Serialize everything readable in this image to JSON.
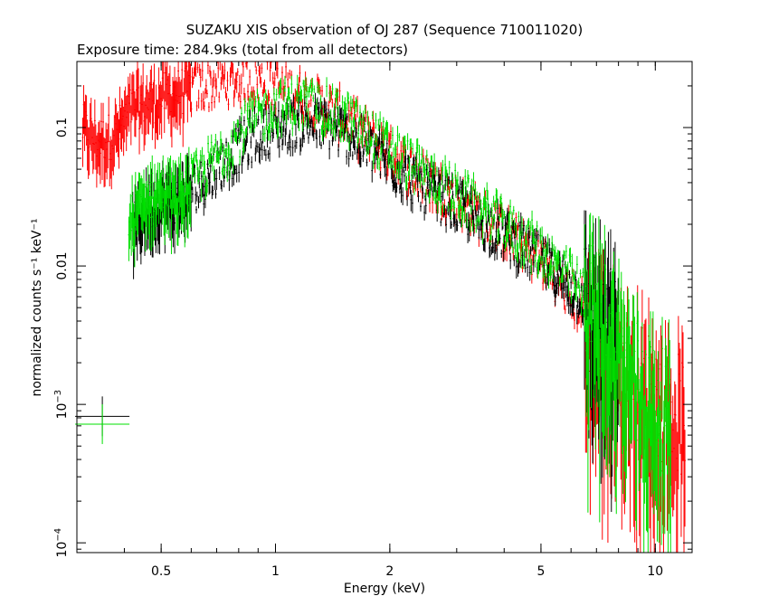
{
  "chart_data": {
    "type": "scatter",
    "title": "SUZAKU XIS observation of OJ 287 (Sequence 710011020)",
    "subtitle": "Exposure time: 284.9ks (total from all detectors)",
    "xlabel": "Energy (keV)",
    "ylabel": "normalized counts s⁻¹ keV⁻¹",
    "xscale": "log",
    "yscale": "log",
    "xlim": [
      0.3,
      12.5
    ],
    "ylim": [
      8.5e-05,
      0.3
    ],
    "grid": false,
    "x_ticks": [
      {
        "value": 0.5,
        "label": "0.5"
      },
      {
        "value": 1,
        "label": "1"
      },
      {
        "value": 2,
        "label": "2"
      },
      {
        "value": 5,
        "label": "5"
      },
      {
        "value": 10,
        "label": "10"
      }
    ],
    "y_ticks": [
      {
        "value": 0.0001,
        "base": "10",
        "exp": "−4"
      },
      {
        "value": 0.001,
        "base": "10",
        "exp": "−3"
      },
      {
        "value": 0.01,
        "label": "0.01"
      },
      {
        "value": 0.1,
        "label": "0.1"
      }
    ],
    "series": [
      {
        "color": "#ff0000",
        "x": [
          0.31,
          0.34,
          0.38,
          0.42,
          0.48,
          0.55,
          0.65,
          0.75,
          0.9,
          1.0,
          1.2,
          1.5,
          2.0,
          2.5,
          3.0,
          4.0,
          5.0,
          6.0,
          7.0,
          8.0,
          9.0,
          10.0,
          11.0,
          12.0
        ],
        "y": [
          0.1,
          0.08,
          0.09,
          0.14,
          0.16,
          0.18,
          0.2,
          0.22,
          0.22,
          0.2,
          0.17,
          0.12,
          0.065,
          0.042,
          0.03,
          0.018,
          0.011,
          0.006,
          0.004,
          0.002,
          0.0015,
          0.0012,
          0.0009,
          0.0008
        ]
      },
      {
        "color": "#000000",
        "x": [
          0.42,
          0.45,
          0.5,
          0.55,
          0.6,
          0.7,
          0.8,
          0.9,
          1.0,
          1.2,
          1.4,
          1.6,
          2.0,
          2.5,
          3.0,
          4.0,
          5.0,
          6.0,
          7.0,
          8.0
        ],
        "y": [
          0.018,
          0.025,
          0.03,
          0.03,
          0.035,
          0.05,
          0.07,
          0.09,
          0.1,
          0.11,
          0.1,
          0.085,
          0.055,
          0.035,
          0.027,
          0.017,
          0.011,
          0.007,
          0.005,
          0.003
        ]
      },
      {
        "color": "#00e000",
        "x": [
          0.41,
          0.45,
          0.5,
          0.55,
          0.6,
          0.7,
          0.8,
          0.9,
          1.0,
          1.2,
          1.4,
          1.6,
          2.0,
          2.5,
          3.0,
          4.0,
          5.0,
          6.0,
          7.0,
          8.0,
          9.0,
          10.0,
          11.0
        ],
        "y": [
          0.02,
          0.03,
          0.035,
          0.03,
          0.04,
          0.06,
          0.09,
          0.12,
          0.14,
          0.15,
          0.13,
          0.11,
          0.07,
          0.045,
          0.033,
          0.02,
          0.013,
          0.008,
          0.005,
          0.003,
          0.0015,
          0.001,
          0.0008
        ]
      }
    ],
    "legend_markers": [
      {
        "color": "#000000",
        "x": 0.35,
        "y": 0.00082
      },
      {
        "color": "#00e000",
        "x": 0.35,
        "y": 0.00072
      }
    ]
  }
}
